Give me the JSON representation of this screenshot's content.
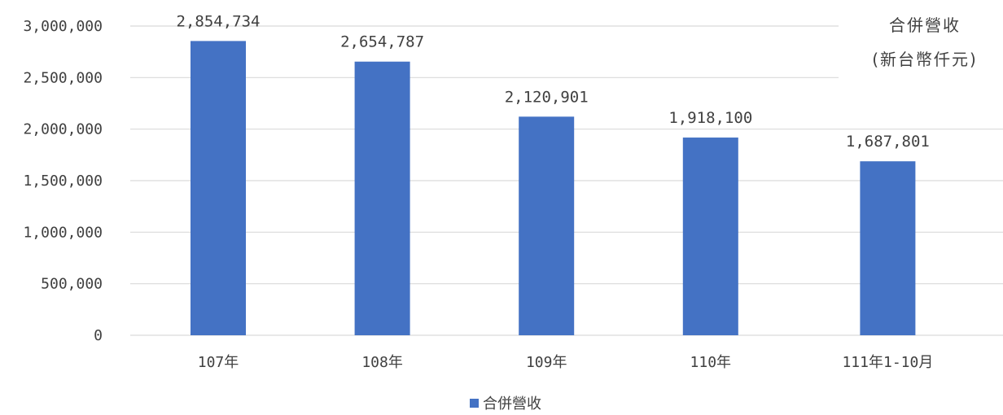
{
  "chart_data": {
    "type": "bar",
    "categories": [
      "107年",
      "108年",
      "109年",
      "110年",
      "111年1-10月"
    ],
    "series": [
      {
        "name": "合併營收",
        "values": [
          2854734,
          2654787,
          2120901,
          1918100,
          1687801
        ],
        "display_labels": [
          "2,854,734",
          "2,654,787",
          "2,120,901",
          "1,918,100",
          "1,687,801"
        ],
        "color": "#4472C4"
      }
    ],
    "ylim": [
      0,
      3000000
    ],
    "yticks": [
      0,
      500000,
      1000000,
      1500000,
      2000000,
      2500000,
      3000000
    ],
    "ytick_labels": [
      "0",
      "500,000",
      "1,000,000",
      "1,500,000",
      "2,000,000",
      "2,500,000",
      "3,000,000"
    ],
    "unit_line1": "合併營收",
    "unit_line2": "(新台幣仟元)",
    "grid": true,
    "gridline_color": "#D9D9D9",
    "legend_position": "bottom"
  }
}
